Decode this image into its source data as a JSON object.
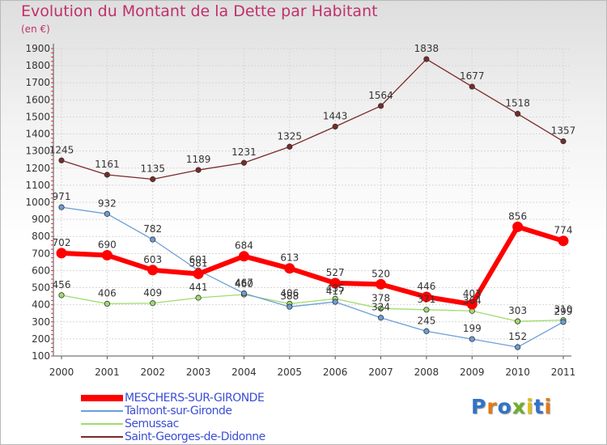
{
  "title": "Evolution du Montant de la Dette par Habitant",
  "subtitle": "(en €)",
  "logo": {
    "text": "Proxiti",
    "colors": [
      "#2f73c9",
      "#e27a16",
      "#2f73c9",
      "#6fae2c",
      "#e2c116",
      "#2f73c9",
      "#e27a16"
    ]
  },
  "chart_data": {
    "type": "line",
    "categories": [
      "2000",
      "2001",
      "2002",
      "2003",
      "2004",
      "2005",
      "2006",
      "2007",
      "2008",
      "2009",
      "2010",
      "2011"
    ],
    "ylim": [
      100,
      1900
    ],
    "yticks": [
      100,
      200,
      300,
      400,
      500,
      600,
      700,
      800,
      900,
      1000,
      1100,
      1200,
      1300,
      1400,
      1500,
      1600,
      1700,
      1800,
      1900
    ],
    "series": [
      {
        "name": "MESCHERS-SUR-GIRONDE",
        "color": "#ff0000",
        "values": [
          702,
          690,
          603,
          581,
          684,
          613,
          527,
          520,
          446,
          403,
          856,
          774
        ],
        "labels": [
          "702",
          "690",
          "603",
          "581",
          "684",
          "613",
          "527",
          "520",
          "446",
          "403",
          "856",
          "774"
        ]
      },
      {
        "name": "Talmont-sur-Gironde",
        "color": "#6a9fd8",
        "values": [
          971,
          932,
          782,
          601,
          467,
          388,
          417,
          324,
          245,
          199,
          152,
          299
        ],
        "labels": [
          "971",
          "932",
          "782",
          "601",
          "467",
          "388",
          "417",
          "324",
          "245",
          "199",
          "152",
          "299"
        ]
      },
      {
        "name": "Semussac",
        "color": "#9fdc6e",
        "values": [
          456,
          406,
          409,
          441,
          460,
          406,
          435,
          378,
          371,
          364,
          303,
          310
        ],
        "labels": [
          "456",
          "406",
          "409",
          "441",
          "460",
          "406",
          "435",
          "378",
          "371",
          "364",
          "303",
          "310"
        ]
      },
      {
        "name": "Saint-Georges-de-Didonne",
        "color": "#7a2a2a",
        "values": [
          1245,
          1161,
          1135,
          1189,
          1231,
          1325,
          1443,
          1564,
          1838,
          1677,
          1518,
          1357
        ],
        "labels": [
          "1245",
          "1161",
          "1135",
          "1189",
          "1231",
          "1325",
          "1443",
          "1564",
          "1838",
          "1677",
          "1518",
          "1357"
        ]
      }
    ]
  }
}
